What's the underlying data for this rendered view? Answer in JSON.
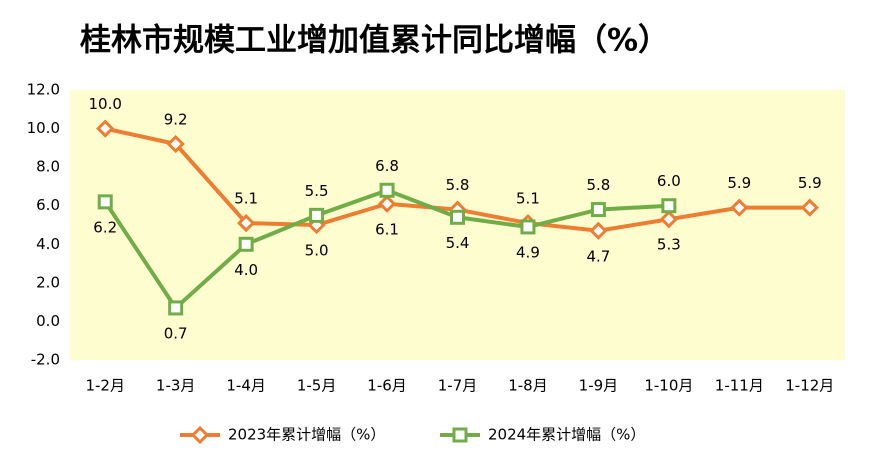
{
  "chart_data": {
    "type": "line",
    "title": "桂林市规模工业增加值累计同比增幅（%）",
    "categories": [
      "1-2月",
      "1-3月",
      "1-4月",
      "1-5月",
      "1-6月",
      "1-7月",
      "1-8月",
      "1-9月",
      "1-10月",
      "1-11月",
      "1-12月"
    ],
    "series": [
      {
        "name": "2023年累计增幅（%）",
        "color": "#ed7d31",
        "marker": "diamond",
        "values": [
          10.0,
          9.2,
          5.1,
          5.0,
          6.1,
          5.8,
          5.1,
          4.7,
          5.3,
          5.9,
          5.9
        ],
        "value_labels": [
          "10.0",
          "9.2",
          "5.1",
          "5.0",
          "6.1",
          "5.8",
          "5.1",
          "4.7",
          "5.3",
          "5.9",
          "5.9"
        ]
      },
      {
        "name": "2024年累计增幅（%）",
        "color": "#70ad47",
        "marker": "square",
        "values": [
          6.2,
          0.7,
          4.0,
          5.5,
          6.8,
          5.4,
          4.9,
          5.8,
          6.0,
          null,
          null
        ],
        "value_labels": [
          "6.2",
          "0.7",
          "4.0",
          "5.5",
          "6.8",
          "5.4",
          "4.9",
          "5.8",
          "6.0",
          null,
          null
        ]
      }
    ],
    "ylim": [
      -2,
      12
    ],
    "yticks": [
      {
        "value": -2,
        "label": "-2.0"
      },
      {
        "value": 0,
        "label": "0.0"
      },
      {
        "value": 2,
        "label": "2.0"
      },
      {
        "value": 4,
        "label": "4.0"
      },
      {
        "value": 6,
        "label": "6.0"
      },
      {
        "value": 8,
        "label": "8.0"
      },
      {
        "value": 10,
        "label": "10.0"
      },
      {
        "value": 12,
        "label": "12.0"
      }
    ],
    "plot_background": "#fefdd0",
    "legend": "bottom"
  }
}
